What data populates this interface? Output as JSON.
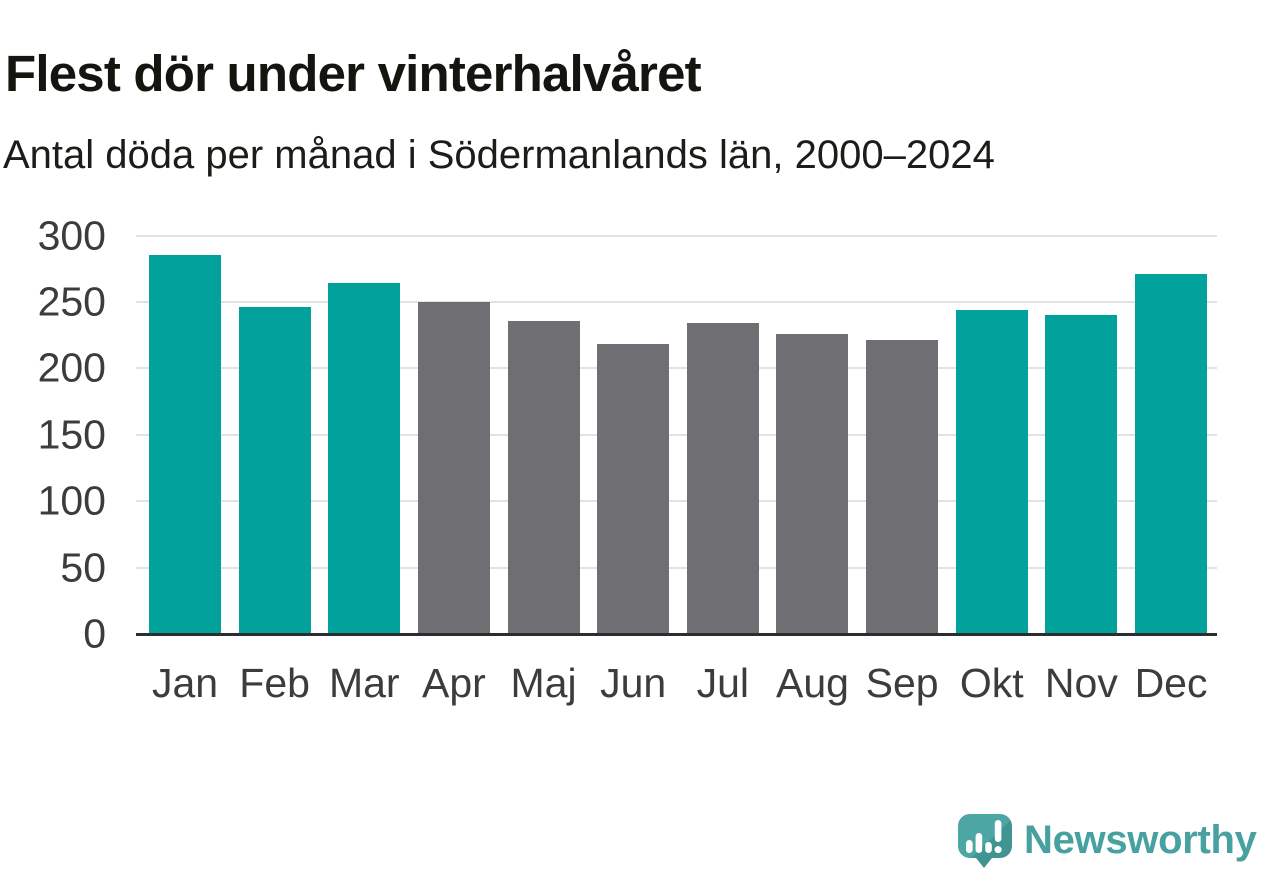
{
  "page": {
    "title": "Flest dör under vinterhalvåret",
    "subtitle": "Antal döda per månad i Södermanlands län, 2000–2024"
  },
  "branding": {
    "wordmark": "Newsworthy",
    "icon": "speech-bubble-with-bar-chart-and-exclamation"
  },
  "colors": {
    "winter_bar": "#00a29b",
    "summer_bar": "#6e6e73",
    "gridline": "#e2e2e2",
    "axis_line": "#2d2d2d",
    "tick_label": "#3c3c3c",
    "title_text": "#15150f",
    "subtitle_text": "#1c1c18",
    "brand_text": "#48a1a1",
    "brand_icon": "#4ba6a4"
  },
  "chart_data": {
    "type": "bar",
    "title": "Flest dör under vinterhalvåret",
    "subtitle": "Antal döda per månad i Södermanlands län, 2000–2024",
    "categories": [
      "Jan",
      "Feb",
      "Mar",
      "Apr",
      "Maj",
      "Jun",
      "Jul",
      "Aug",
      "Sep",
      "Okt",
      "Nov",
      "Dec"
    ],
    "values": [
      285,
      246,
      264,
      250,
      236,
      218,
      234,
      226,
      221,
      244,
      240,
      271
    ],
    "bar_seasons": [
      "winter",
      "winter",
      "winter",
      "summer",
      "summer",
      "summer",
      "summer",
      "summer",
      "summer",
      "winter",
      "winter",
      "winter"
    ],
    "xlabel": "",
    "ylabel": "",
    "ylim": [
      0,
      300
    ],
    "yticks": [
      0,
      50,
      100,
      150,
      200,
      250,
      300
    ],
    "grid": true,
    "legend_position": "none"
  }
}
